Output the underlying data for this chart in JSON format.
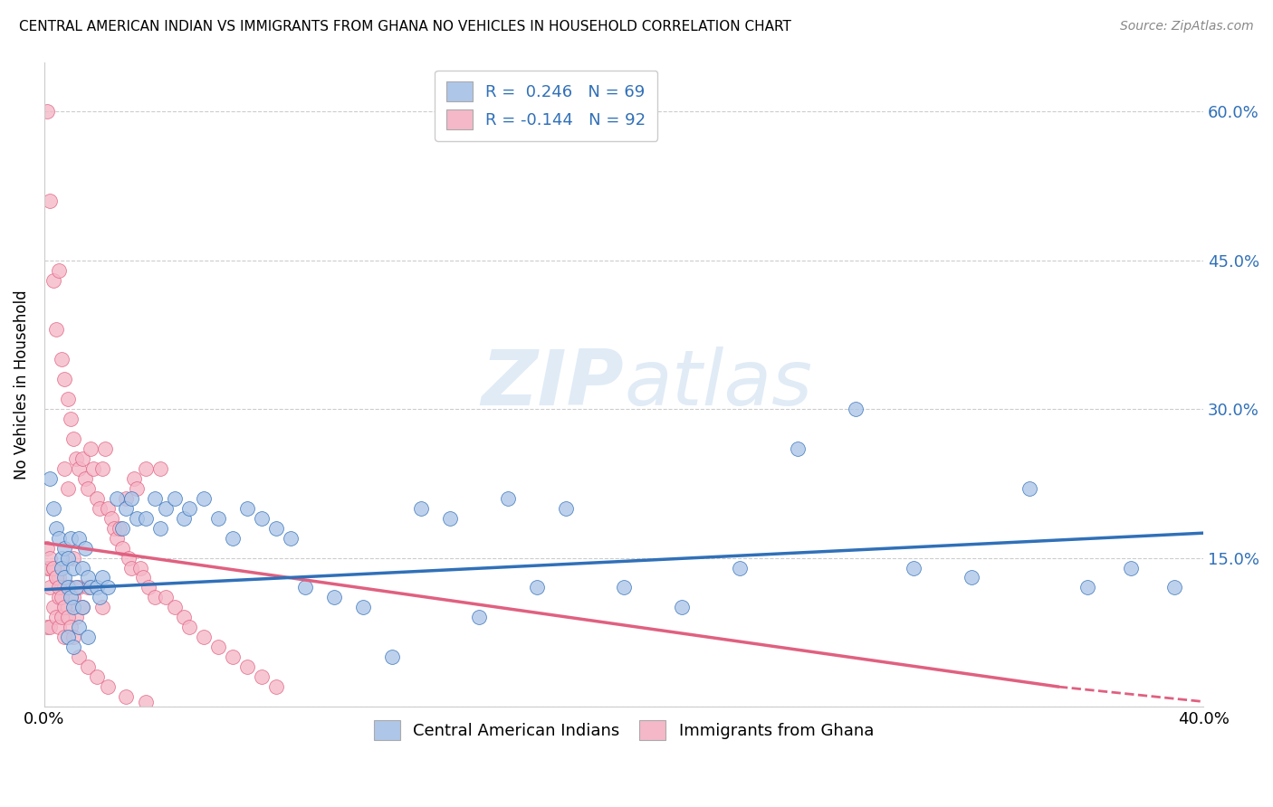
{
  "title": "CENTRAL AMERICAN INDIAN VS IMMIGRANTS FROM GHANA NO VEHICLES IN HOUSEHOLD CORRELATION CHART",
  "source": "Source: ZipAtlas.com",
  "ylabel": "No Vehicles in Household",
  "xlim": [
    0.0,
    0.4
  ],
  "ylim": [
    0.0,
    0.65
  ],
  "blue_R": 0.246,
  "blue_N": 69,
  "pink_R": -0.144,
  "pink_N": 92,
  "blue_color": "#aec6e8",
  "pink_color": "#f5b8c8",
  "blue_line_color": "#3070b8",
  "pink_line_color": "#e06080",
  "legend_text_color": "#3070b8",
  "legend_label_blue": "Central American Indians",
  "legend_label_pink": "Immigrants from Ghana",
  "watermark_zip": "ZIP",
  "watermark_atlas": "atlas",
  "blue_trend": [
    0.0,
    0.4,
    0.118,
    0.175
  ],
  "pink_trend_solid": [
    0.0,
    0.35,
    0.165,
    0.02
  ],
  "pink_trend_dashed": [
    0.35,
    0.4,
    0.02,
    0.005
  ],
  "blue_x": [
    0.002,
    0.003,
    0.004,
    0.005,
    0.006,
    0.006,
    0.007,
    0.007,
    0.008,
    0.008,
    0.009,
    0.009,
    0.01,
    0.01,
    0.011,
    0.012,
    0.013,
    0.013,
    0.014,
    0.015,
    0.016,
    0.018,
    0.019,
    0.02,
    0.022,
    0.025,
    0.027,
    0.028,
    0.03,
    0.032,
    0.035,
    0.038,
    0.04,
    0.042,
    0.045,
    0.048,
    0.05,
    0.055,
    0.06,
    0.065,
    0.07,
    0.075,
    0.08,
    0.085,
    0.09,
    0.1,
    0.11,
    0.12,
    0.13,
    0.14,
    0.15,
    0.16,
    0.17,
    0.18,
    0.2,
    0.22,
    0.24,
    0.26,
    0.28,
    0.3,
    0.32,
    0.34,
    0.36,
    0.375,
    0.39,
    0.008,
    0.01,
    0.012,
    0.015
  ],
  "blue_y": [
    0.23,
    0.2,
    0.18,
    0.17,
    0.15,
    0.14,
    0.16,
    0.13,
    0.15,
    0.12,
    0.17,
    0.11,
    0.14,
    0.1,
    0.12,
    0.17,
    0.14,
    0.1,
    0.16,
    0.13,
    0.12,
    0.12,
    0.11,
    0.13,
    0.12,
    0.21,
    0.18,
    0.2,
    0.21,
    0.19,
    0.19,
    0.21,
    0.18,
    0.2,
    0.21,
    0.19,
    0.2,
    0.21,
    0.19,
    0.17,
    0.2,
    0.19,
    0.18,
    0.17,
    0.12,
    0.11,
    0.1,
    0.05,
    0.2,
    0.19,
    0.09,
    0.21,
    0.12,
    0.2,
    0.12,
    0.1,
    0.14,
    0.26,
    0.3,
    0.14,
    0.13,
    0.22,
    0.12,
    0.14,
    0.12,
    0.07,
    0.06,
    0.08,
    0.07
  ],
  "pink_x": [
    0.001,
    0.001,
    0.001,
    0.002,
    0.002,
    0.002,
    0.002,
    0.003,
    0.003,
    0.003,
    0.004,
    0.004,
    0.004,
    0.005,
    0.005,
    0.005,
    0.005,
    0.006,
    0.006,
    0.006,
    0.006,
    0.007,
    0.007,
    0.007,
    0.007,
    0.008,
    0.008,
    0.008,
    0.009,
    0.009,
    0.01,
    0.01,
    0.01,
    0.011,
    0.011,
    0.012,
    0.012,
    0.013,
    0.013,
    0.014,
    0.015,
    0.015,
    0.016,
    0.017,
    0.018,
    0.019,
    0.02,
    0.02,
    0.021,
    0.022,
    0.023,
    0.024,
    0.025,
    0.026,
    0.027,
    0.028,
    0.029,
    0.03,
    0.031,
    0.032,
    0.033,
    0.034,
    0.035,
    0.036,
    0.038,
    0.04,
    0.042,
    0.045,
    0.048,
    0.05,
    0.055,
    0.06,
    0.065,
    0.07,
    0.075,
    0.08,
    0.001,
    0.002,
    0.003,
    0.004,
    0.005,
    0.006,
    0.007,
    0.008,
    0.009,
    0.01,
    0.012,
    0.015,
    0.018,
    0.022,
    0.028,
    0.035
  ],
  "pink_y": [
    0.6,
    0.14,
    0.08,
    0.51,
    0.14,
    0.12,
    0.08,
    0.43,
    0.14,
    0.1,
    0.38,
    0.13,
    0.09,
    0.44,
    0.13,
    0.11,
    0.08,
    0.35,
    0.14,
    0.12,
    0.09,
    0.33,
    0.24,
    0.12,
    0.07,
    0.31,
    0.22,
    0.1,
    0.29,
    0.12,
    0.27,
    0.15,
    0.11,
    0.25,
    0.09,
    0.24,
    0.12,
    0.25,
    0.1,
    0.23,
    0.22,
    0.12,
    0.26,
    0.24,
    0.21,
    0.2,
    0.24,
    0.1,
    0.26,
    0.2,
    0.19,
    0.18,
    0.17,
    0.18,
    0.16,
    0.21,
    0.15,
    0.14,
    0.23,
    0.22,
    0.14,
    0.13,
    0.24,
    0.12,
    0.11,
    0.24,
    0.11,
    0.1,
    0.09,
    0.08,
    0.07,
    0.06,
    0.05,
    0.04,
    0.03,
    0.02,
    0.16,
    0.15,
    0.14,
    0.13,
    0.12,
    0.11,
    0.1,
    0.09,
    0.08,
    0.07,
    0.05,
    0.04,
    0.03,
    0.02,
    0.01,
    0.005
  ]
}
